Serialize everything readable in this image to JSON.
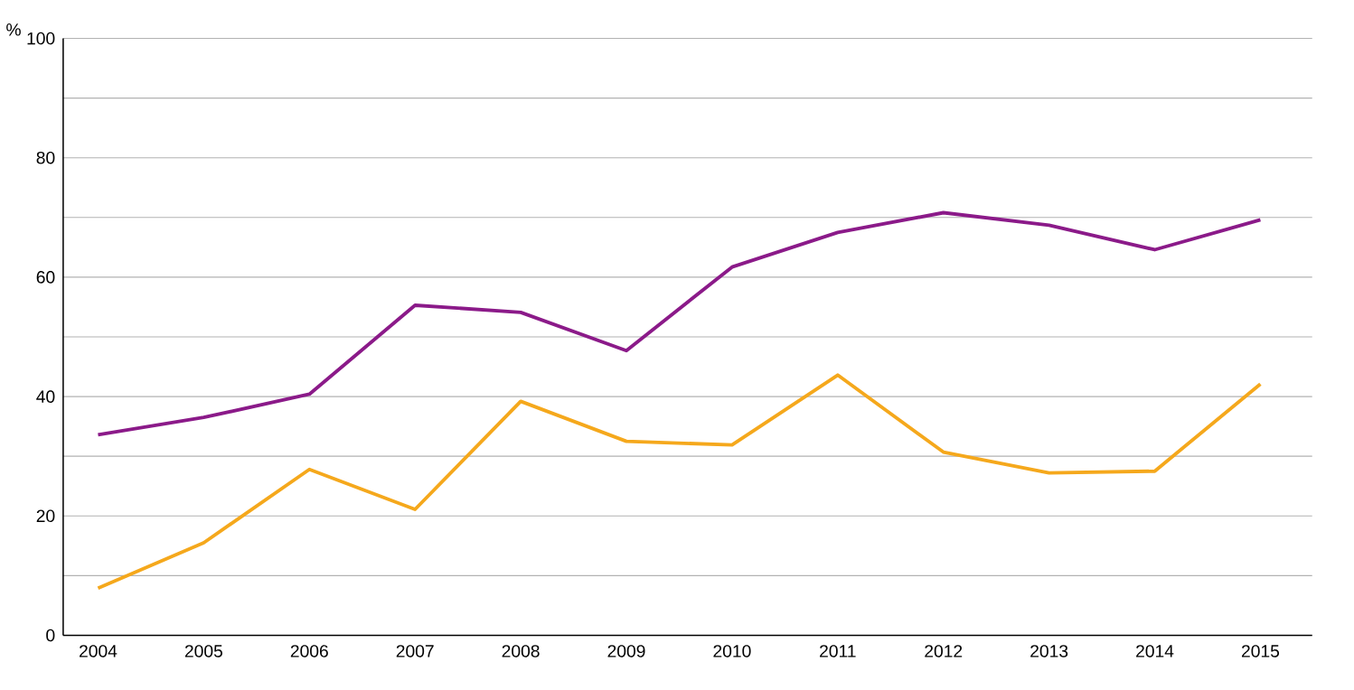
{
  "chart_data": {
    "type": "line",
    "ylabel": "%",
    "categories": [
      "2004",
      "2005",
      "2006",
      "2007",
      "2008",
      "2009",
      "2010",
      "2011",
      "2012",
      "2013",
      "2014",
      "2015"
    ],
    "series": [
      {
        "color": "#8b1a89",
        "values": [
          33.6,
          36.5,
          40.4,
          55.3,
          54.1,
          47.7,
          61.7,
          67.5,
          70.8,
          68.7,
          64.6,
          69.6
        ]
      },
      {
        "color": "#f5a81c",
        "values": [
          7.9,
          15.5,
          27.8,
          21.1,
          39.2,
          32.5,
          31.9,
          43.6,
          30.7,
          27.2,
          27.5,
          42.1
        ]
      }
    ],
    "ylim": [
      0,
      100
    ],
    "yticks": [
      0,
      {
        "value": 10,
        "label": null
      },
      20,
      {
        "value": 30,
        "label": null
      },
      40,
      {
        "value": 50,
        "label": null
      },
      60,
      {
        "value": 70,
        "label": null
      },
      80,
      {
        "value": 90,
        "label": null
      },
      100
    ],
    "grid": "y",
    "marker": "none",
    "line_style": "solid"
  }
}
